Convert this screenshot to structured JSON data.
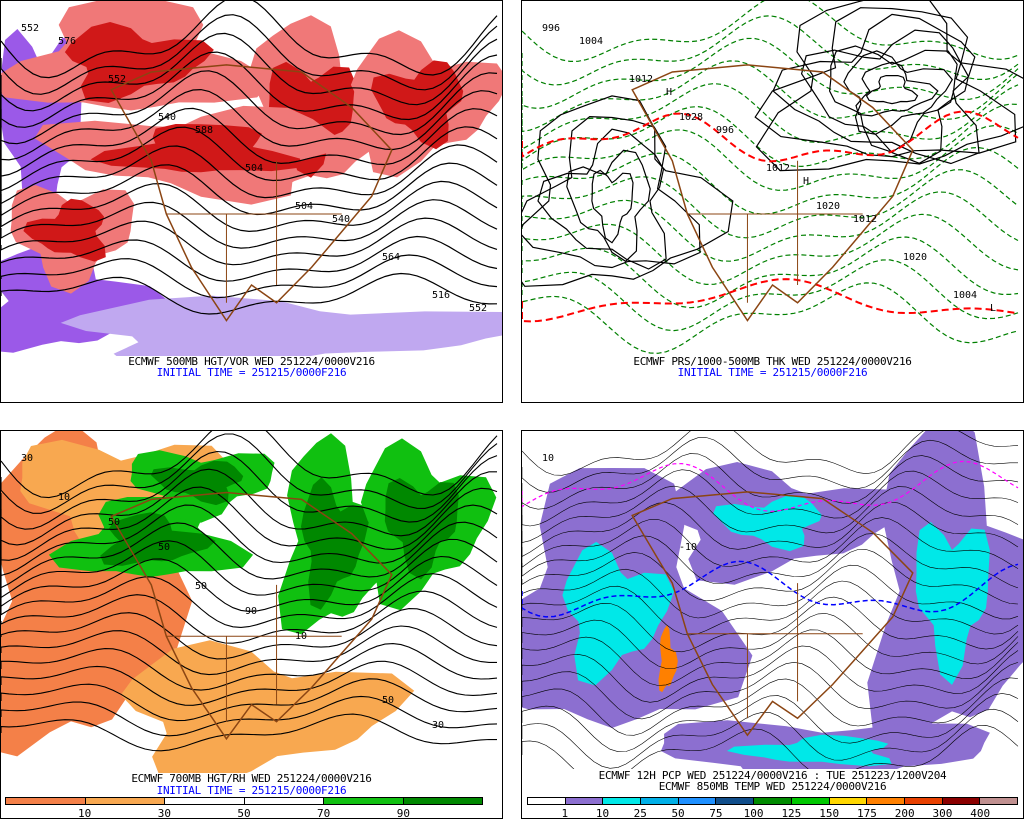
{
  "panels": [
    {
      "id": "tl",
      "caption": "ECMWF 500MB HGT/VOR WED 251224/0000V216",
      "initial_time": "INITIAL TIME = 251215/0000F216",
      "contour_labels": [
        "552",
        "540",
        "504",
        "516",
        "552",
        "504",
        "564",
        "576",
        "588",
        "540",
        "552"
      ],
      "colors": {
        "bg": "#ffffff",
        "fill1": "#f07878",
        "fill2": "#d01818",
        "fill3": "#9b59e8",
        "line": "#000000",
        "border": "#8b4513"
      }
    },
    {
      "id": "tr",
      "caption": "ECMWF PRS/1000-500MB THK WED 251224/0000V216",
      "initial_time": "INITIAL TIME = 251215/0000F216",
      "contour_labels": [
        "996",
        "1028",
        "1020",
        "1004",
        "1012",
        "1012",
        "1020",
        "1004",
        "996",
        "1012",
        "L",
        "H",
        "H"
      ],
      "colors": {
        "bg": "#ffffff",
        "dash": "#008000",
        "red": "#ff0000",
        "line": "#000000",
        "border": "#8b4513"
      }
    },
    {
      "id": "bl",
      "caption": "ECMWF 700MB HGT/RH WED 251224/0000V216",
      "initial_time": "INITIAL TIME = 251215/0000F216",
      "contour_labels": [
        "30",
        "50",
        "10",
        "30",
        "50",
        "90",
        "50",
        "10",
        "50"
      ],
      "colorbar": {
        "colors": [
          "#f48048",
          "#f8a850",
          "#ffffff",
          "#ffffff",
          "#10c010",
          "#008800"
        ],
        "labels": [
          "10",
          "30",
          "50",
          "70",
          "90"
        ]
      }
    },
    {
      "id": "br",
      "caption": "ECMWF 12H PCP WED 251224/0000V216 : TUE 251223/1200V204",
      "caption2": "ECMWF 850MB TEMP WED 251224/0000V216",
      "contour_labels": [
        "10",
        "-10"
      ],
      "colorbar": {
        "colors": [
          "#ffffff",
          "#8c6fd0",
          "#00e8e8",
          "#00b0e8",
          "#1e90ff",
          "#104e8b",
          "#008b00",
          "#00c800",
          "#ffd700",
          "#ff8000",
          "#e84000",
          "#8b0000",
          "#c09090"
        ],
        "labels": [
          "1",
          "10",
          "25",
          "50",
          "75",
          "100",
          "125",
          "150",
          "175",
          "200",
          "300",
          "400"
        ]
      }
    }
  ]
}
